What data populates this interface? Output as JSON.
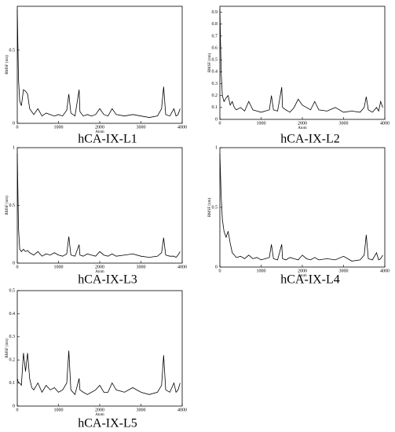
{
  "chart_data": [
    {
      "type": "line",
      "title": "hCA-IX-L1",
      "xlabel": "Atom",
      "ylabel": "RMSF (nm)",
      "color": "#000000",
      "xlim": [
        0,
        4000
      ],
      "ylim": [
        0,
        0.8
      ],
      "xticks": [
        0,
        1000,
        2000,
        3000,
        4000
      ],
      "yticks": [
        0,
        0.5
      ],
      "x": [
        0,
        30,
        60,
        100,
        150,
        200,
        250,
        300,
        350,
        400,
        500,
        600,
        700,
        800,
        900,
        1000,
        1100,
        1200,
        1250,
        1300,
        1400,
        1500,
        1520,
        1600,
        1700,
        1800,
        1900,
        2000,
        2100,
        2200,
        2300,
        2400,
        2600,
        2800,
        3000,
        3200,
        3400,
        3500,
        3550,
        3600,
        3700,
        3800,
        3850,
        3900,
        3950
      ],
      "values": [
        0.78,
        0.3,
        0.15,
        0.12,
        0.23,
        0.22,
        0.2,
        0.1,
        0.08,
        0.06,
        0.1,
        0.05,
        0.07,
        0.06,
        0.05,
        0.06,
        0.05,
        0.09,
        0.2,
        0.07,
        0.05,
        0.23,
        0.08,
        0.05,
        0.06,
        0.05,
        0.06,
        0.1,
        0.06,
        0.05,
        0.1,
        0.06,
        0.05,
        0.06,
        0.05,
        0.04,
        0.05,
        0.1,
        0.25,
        0.06,
        0.05,
        0.1,
        0.05,
        0.06,
        0.1
      ]
    },
    {
      "type": "line",
      "title": "hCA-IX-L2",
      "xlabel": "Atom",
      "ylabel": "RMSF (nm)",
      "color": "#000000",
      "xlim": [
        0,
        4000
      ],
      "ylim": [
        0,
        0.95
      ],
      "xticks": [
        0,
        1000,
        2000,
        3000,
        4000
      ],
      "yticks": [
        0,
        0.1,
        0.2,
        0.3,
        0.4,
        0.5,
        0.6,
        0.7,
        0.8,
        0.9
      ],
      "x": [
        0,
        30,
        60,
        100,
        150,
        200,
        250,
        300,
        350,
        400,
        500,
        600,
        700,
        800,
        900,
        1000,
        1100,
        1200,
        1250,
        1300,
        1400,
        1500,
        1520,
        1600,
        1700,
        1800,
        1900,
        2000,
        2100,
        2200,
        2300,
        2400,
        2600,
        2800,
        3000,
        3200,
        3400,
        3500,
        3550,
        3600,
        3700,
        3800,
        3850,
        3900,
        3950
      ],
      "values": [
        0.93,
        0.4,
        0.2,
        0.15,
        0.18,
        0.2,
        0.12,
        0.15,
        0.1,
        0.08,
        0.1,
        0.07,
        0.15,
        0.08,
        0.07,
        0.06,
        0.07,
        0.08,
        0.2,
        0.08,
        0.07,
        0.27,
        0.1,
        0.08,
        0.06,
        0.1,
        0.17,
        0.12,
        0.1,
        0.08,
        0.15,
        0.08,
        0.07,
        0.1,
        0.06,
        0.07,
        0.06,
        0.1,
        0.19,
        0.08,
        0.06,
        0.1,
        0.07,
        0.15,
        0.1
      ]
    },
    {
      "type": "line",
      "title": "hCA-IX-L3",
      "xlabel": "Atom",
      "ylabel": "RMSF (nm)",
      "color": "#000000",
      "xlim": [
        0,
        4000
      ],
      "ylim": [
        0,
        1
      ],
      "xticks": [
        0,
        1000,
        2000,
        3000,
        4000
      ],
      "yticks": [
        0,
        0.5,
        1
      ],
      "x": [
        0,
        30,
        60,
        100,
        150,
        200,
        250,
        300,
        350,
        400,
        500,
        600,
        700,
        800,
        900,
        1000,
        1100,
        1200,
        1250,
        1300,
        1400,
        1500,
        1520,
        1600,
        1700,
        1800,
        1900,
        2000,
        2100,
        2200,
        2300,
        2400,
        2600,
        2800,
        3000,
        3200,
        3400,
        3500,
        3550,
        3600,
        3700,
        3800,
        3850,
        3900,
        3950
      ],
      "values": [
        0.95,
        0.3,
        0.12,
        0.1,
        0.12,
        0.1,
        0.11,
        0.09,
        0.08,
        0.07,
        0.1,
        0.06,
        0.08,
        0.07,
        0.09,
        0.07,
        0.06,
        0.08,
        0.23,
        0.07,
        0.06,
        0.16,
        0.07,
        0.06,
        0.08,
        0.07,
        0.06,
        0.1,
        0.07,
        0.06,
        0.08,
        0.06,
        0.07,
        0.08,
        0.06,
        0.05,
        0.06,
        0.09,
        0.22,
        0.07,
        0.06,
        0.06,
        0.05,
        0.07,
        0.1
      ]
    },
    {
      "type": "line",
      "title": "hCA-IX-L4",
      "xlabel": "Atom",
      "ylabel": "RMSF (nm)",
      "color": "#000000",
      "xlim": [
        0,
        4000
      ],
      "ylim": [
        0,
        1
      ],
      "xticks": [
        0,
        1000,
        2000,
        3000,
        4000
      ],
      "yticks": [
        0,
        0.5,
        1
      ],
      "x": [
        0,
        30,
        60,
        100,
        150,
        200,
        250,
        300,
        350,
        400,
        500,
        600,
        700,
        800,
        900,
        1000,
        1100,
        1200,
        1250,
        1300,
        1400,
        1500,
        1520,
        1600,
        1700,
        1800,
        1900,
        2000,
        2100,
        2200,
        2300,
        2400,
        2600,
        2800,
        3000,
        3200,
        3400,
        3500,
        3550,
        3600,
        3700,
        3800,
        3850,
        3900,
        3950
      ],
      "values": [
        0.95,
        0.6,
        0.4,
        0.3,
        0.25,
        0.3,
        0.2,
        0.12,
        0.1,
        0.08,
        0.09,
        0.07,
        0.1,
        0.07,
        0.08,
        0.06,
        0.07,
        0.08,
        0.19,
        0.07,
        0.06,
        0.19,
        0.07,
        0.06,
        0.08,
        0.07,
        0.06,
        0.1,
        0.07,
        0.06,
        0.08,
        0.06,
        0.07,
        0.06,
        0.09,
        0.05,
        0.06,
        0.1,
        0.27,
        0.07,
        0.06,
        0.12,
        0.06,
        0.07,
        0.1
      ]
    },
    {
      "type": "line",
      "title": "hCA-IX-L5",
      "xlabel": "Atom",
      "ylabel": "RMSF (nm)",
      "color": "#000000",
      "xlim": [
        0,
        4000
      ],
      "ylim": [
        0,
        0.5
      ],
      "xticks": [
        0,
        1000,
        2000,
        3000,
        4000
      ],
      "yticks": [
        0,
        0.1,
        0.2,
        0.3,
        0.4,
        0.5
      ],
      "x": [
        0,
        30,
        60,
        100,
        150,
        200,
        250,
        300,
        350,
        400,
        500,
        600,
        700,
        800,
        900,
        1000,
        1100,
        1200,
        1250,
        1300,
        1400,
        1500,
        1520,
        1600,
        1700,
        1800,
        1900,
        2000,
        2100,
        2200,
        2300,
        2400,
        2600,
        2800,
        3000,
        3200,
        3400,
        3500,
        3550,
        3600,
        3700,
        3800,
        3850,
        3900,
        3950
      ],
      "values": [
        0.12,
        0.1,
        0.1,
        0.09,
        0.23,
        0.15,
        0.23,
        0.12,
        0.08,
        0.07,
        0.1,
        0.06,
        0.09,
        0.07,
        0.08,
        0.06,
        0.07,
        0.1,
        0.24,
        0.07,
        0.05,
        0.12,
        0.07,
        0.06,
        0.05,
        0.06,
        0.07,
        0.09,
        0.06,
        0.06,
        0.1,
        0.07,
        0.06,
        0.08,
        0.06,
        0.05,
        0.06,
        0.09,
        0.22,
        0.07,
        0.06,
        0.1,
        0.06,
        0.07,
        0.1
      ]
    }
  ]
}
